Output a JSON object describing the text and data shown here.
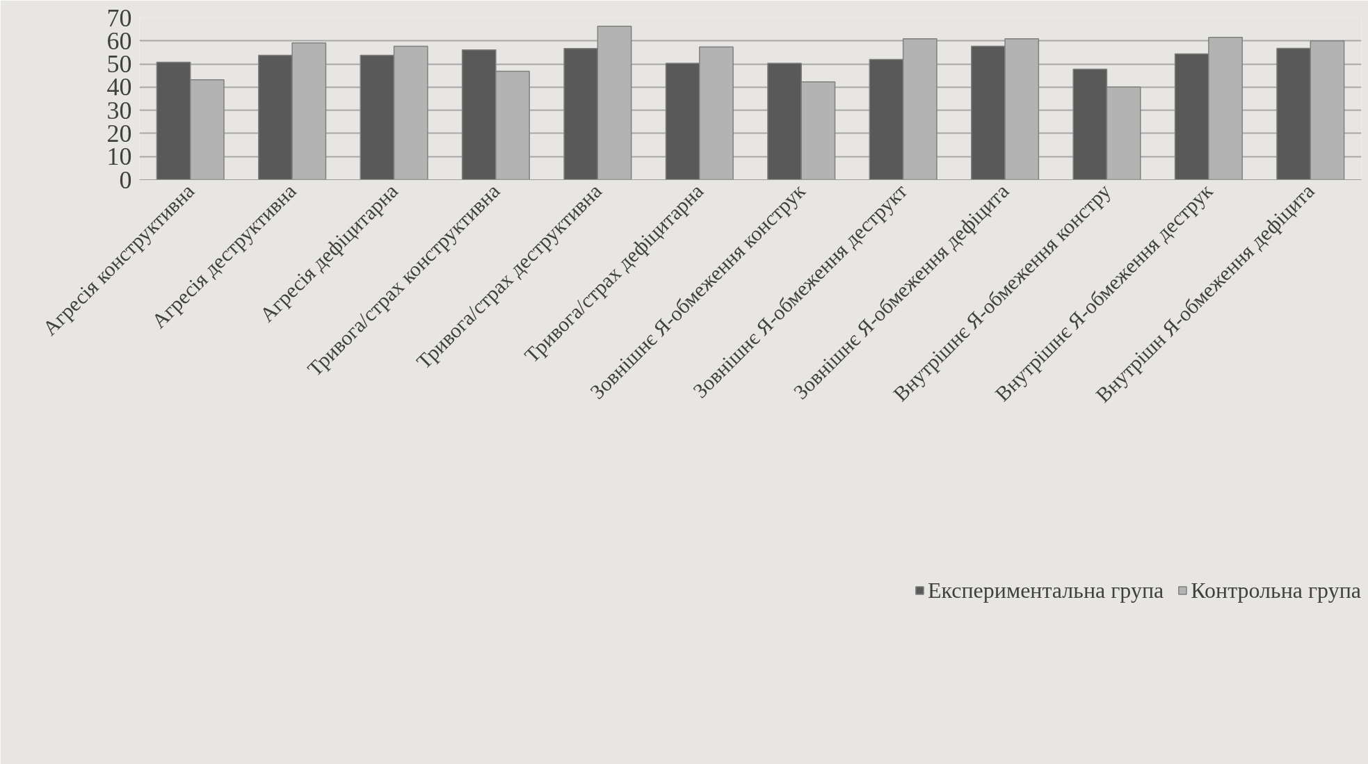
{
  "chart_data": {
    "type": "bar",
    "categories": [
      "Агресія конструктивна",
      "Агресія деструктивна",
      "Агресія дефіцитарна",
      "Тривога/страх конструктивна",
      "Тривога/страх деструктивна",
      "Тривога/страх дефіцитарна",
      "Зовнішнє Я-обмеження конструк",
      "Зовнішнє Я-обмеження деструкт",
      "Зовнішнє Я-обмеження дефіцита",
      "Внутрішнє Я-обмеження констру",
      "Внутрішнє Я-обмеження деструк",
      "Внутрішн Я-обмеження дефіцита"
    ],
    "series": [
      {
        "name": "Експериментальна група",
        "color": "#595959",
        "values": [
          50.8,
          53.8,
          53.8,
          56.1,
          56.7,
          50.3,
          50.3,
          52.0,
          57.7,
          47.8,
          54.4,
          56.8
        ]
      },
      {
        "name": "Контрольна група",
        "color": "#b3b3b3",
        "values": [
          43.2,
          59.1,
          57.7,
          46.9,
          66.3,
          57.4,
          42.3,
          60.9,
          60.9,
          40.0,
          61.5,
          60.0
        ]
      }
    ],
    "ylim": [
      0,
      70
    ],
    "yticks": [
      0,
      10,
      20,
      30,
      40,
      50,
      60,
      70
    ],
    "grid": "y",
    "legend": "bottom"
  }
}
